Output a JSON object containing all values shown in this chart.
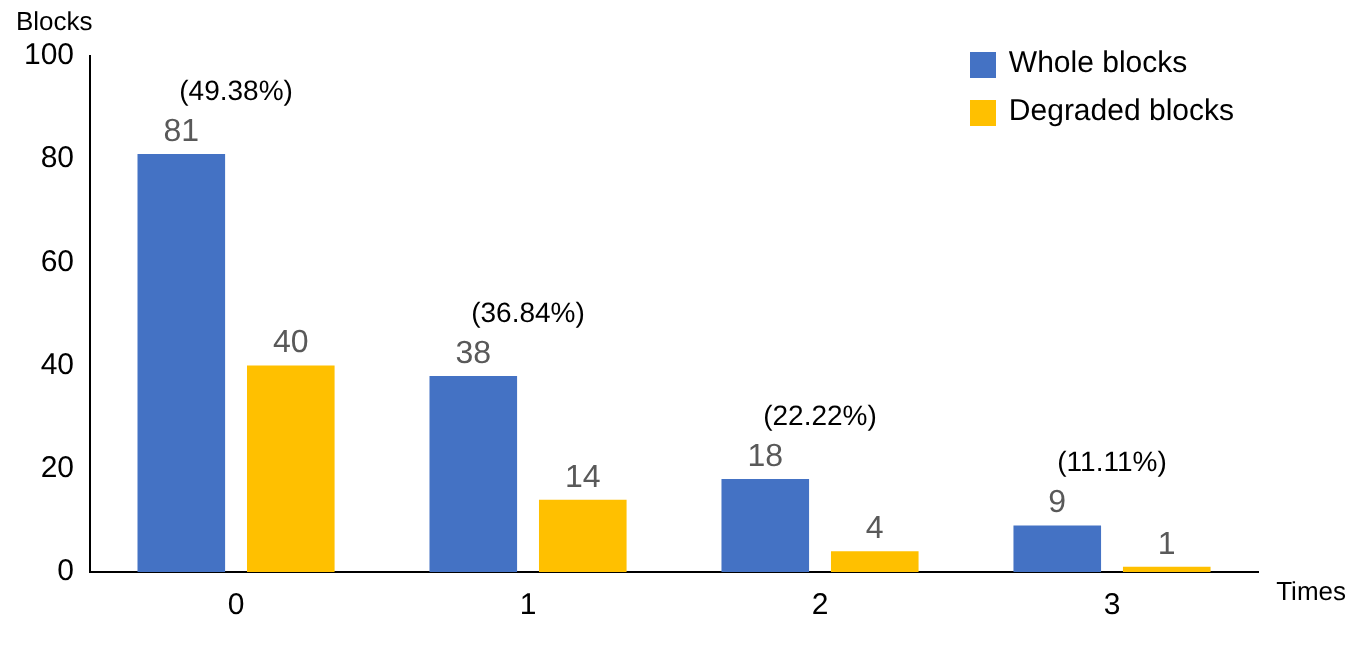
{
  "chart_data": {
    "type": "bar",
    "xlabel": "Times",
    "ylabel": "Blocks",
    "categories": [
      "0",
      "1",
      "2",
      "3"
    ],
    "series": [
      {
        "name": "Whole blocks",
        "color": "#4472c4",
        "values": [
          81,
          38,
          18,
          9
        ]
      },
      {
        "name": "Degraded blocks",
        "color": "#ffc000",
        "values": [
          40,
          14,
          4,
          1
        ]
      }
    ],
    "ylim": [
      0,
      100
    ],
    "yticks": [
      0,
      20,
      40,
      60,
      80,
      100
    ],
    "grid": false,
    "legend": "top right",
    "data_labels": true,
    "annotations": [
      "(49.38%)",
      "(36.84%)",
      "(22.22%)",
      "(11.11%)"
    ]
  }
}
